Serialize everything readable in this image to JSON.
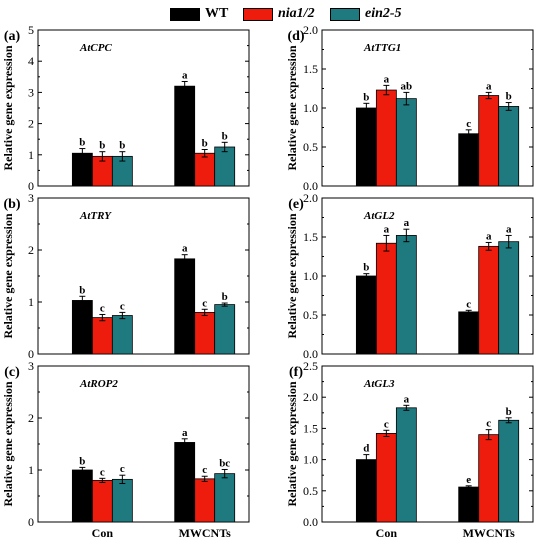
{
  "legend": {
    "wt_label": "WT",
    "nia_label": "nia1/2",
    "ein_label": "ein2-5"
  },
  "colors": {
    "WT": "#000000",
    "nia1/2": "#ee1c0c",
    "ein2-5": "#1f7a80"
  },
  "chart_data": [
    {
      "panel": "(a)",
      "gene": "AtCPC",
      "type": "bar",
      "categories": [
        "Con",
        "MWCNTs"
      ],
      "ylabel": "Relative gene expression",
      "ylim": [
        0,
        5
      ],
      "yticks": [
        0,
        1,
        2,
        3,
        4,
        5
      ],
      "series": [
        {
          "name": "WT",
          "values": [
            1.05,
            3.2
          ],
          "errors": [
            0.15,
            0.15
          ],
          "letters": [
            "b",
            "a"
          ]
        },
        {
          "name": "nia1/2",
          "values": [
            0.95,
            1.05
          ],
          "errors": [
            0.15,
            0.12
          ],
          "letters": [
            "b",
            "b"
          ]
        },
        {
          "name": "ein2-5",
          "values": [
            0.95,
            1.25
          ],
          "errors": [
            0.15,
            0.15
          ],
          "letters": [
            "b",
            "b"
          ]
        }
      ]
    },
    {
      "panel": "(b)",
      "gene": "AtTRY",
      "type": "bar",
      "categories": [
        "Con",
        "MWCNTs"
      ],
      "ylabel": "Relative gene expression",
      "ylim": [
        0,
        3
      ],
      "yticks": [
        0,
        1,
        2,
        3
      ],
      "series": [
        {
          "name": "WT",
          "values": [
            1.03,
            1.83
          ],
          "errors": [
            0.08,
            0.08
          ],
          "letters": [
            "b",
            "a"
          ]
        },
        {
          "name": "nia1/2",
          "values": [
            0.7,
            0.8
          ],
          "errors": [
            0.06,
            0.06
          ],
          "letters": [
            "c",
            "c"
          ]
        },
        {
          "name": "ein2-5",
          "values": [
            0.74,
            0.95
          ],
          "errors": [
            0.06,
            0.03
          ],
          "letters": [
            "c",
            "b"
          ]
        }
      ]
    },
    {
      "panel": "(c)",
      "gene": "AtROP2",
      "type": "bar",
      "categories": [
        "Con",
        "MWCNTs"
      ],
      "xlabels": [
        "Con",
        "MWCNTs"
      ],
      "ylabel": "Relative gene expression",
      "ylim": [
        0,
        3
      ],
      "yticks": [
        0,
        1,
        2,
        3
      ],
      "series": [
        {
          "name": "WT",
          "values": [
            1.0,
            1.53
          ],
          "errors": [
            0.05,
            0.07
          ],
          "letters": [
            "b",
            "a"
          ]
        },
        {
          "name": "nia1/2",
          "values": [
            0.8,
            0.83
          ],
          "errors": [
            0.04,
            0.05
          ],
          "letters": [
            "c",
            "c"
          ]
        },
        {
          "name": "ein2-5",
          "values": [
            0.82,
            0.93
          ],
          "errors": [
            0.08,
            0.08
          ],
          "letters": [
            "c",
            "bc"
          ]
        }
      ]
    },
    {
      "panel": "(d)",
      "gene": "AtTTG1",
      "type": "bar",
      "categories": [
        "Con",
        "MWCNTs"
      ],
      "ylabel": "Relative gene expression",
      "ylim": [
        0,
        2.0
      ],
      "yticks": [
        0,
        0.5,
        1.0,
        1.5,
        2.0
      ],
      "series": [
        {
          "name": "WT",
          "values": [
            1.0,
            0.67
          ],
          "errors": [
            0.06,
            0.05
          ],
          "letters": [
            "b",
            "c"
          ]
        },
        {
          "name": "nia1/2",
          "values": [
            1.23,
            1.16
          ],
          "errors": [
            0.06,
            0.04
          ],
          "letters": [
            "a",
            "a"
          ]
        },
        {
          "name": "ein2-5",
          "values": [
            1.12,
            1.02
          ],
          "errors": [
            0.08,
            0.05
          ],
          "letters": [
            "ab",
            "b"
          ]
        }
      ]
    },
    {
      "panel": "(e)",
      "gene": "AtGL2",
      "type": "bar",
      "categories": [
        "Con",
        "MWCNTs"
      ],
      "ylabel": "Relative gene expression",
      "ylim": [
        0,
        2.0
      ],
      "yticks": [
        0,
        0.5,
        1.0,
        1.5,
        2.0
      ],
      "series": [
        {
          "name": "WT",
          "values": [
            1.0,
            0.54
          ],
          "errors": [
            0.03,
            0.02
          ],
          "letters": [
            "b",
            "c"
          ]
        },
        {
          "name": "nia1/2",
          "values": [
            1.42,
            1.38
          ],
          "errors": [
            0.1,
            0.05
          ],
          "letters": [
            "a",
            "a"
          ]
        },
        {
          "name": "ein2-5",
          "values": [
            1.52,
            1.44
          ],
          "errors": [
            0.08,
            0.08
          ],
          "letters": [
            "a",
            "a"
          ]
        }
      ]
    },
    {
      "panel": "(f)",
      "gene": "AtGL3",
      "type": "bar",
      "categories": [
        "Con",
        "MWCNTs"
      ],
      "xlabels": [
        "Con",
        "MWCNTs"
      ],
      "ylabel": "Relative gene expression",
      "ylim": [
        0,
        2.5
      ],
      "yticks": [
        0.0,
        0.5,
        1.0,
        1.5,
        2.0,
        2.5
      ],
      "series": [
        {
          "name": "WT",
          "values": [
            1.0,
            0.56
          ],
          "errors": [
            0.08,
            0.02
          ],
          "letters": [
            "d",
            "e"
          ]
        },
        {
          "name": "nia1/2",
          "values": [
            1.42,
            1.4
          ],
          "errors": [
            0.05,
            0.08
          ],
          "letters": [
            "c",
            "c"
          ]
        },
        {
          "name": "ein2-5",
          "values": [
            1.83,
            1.63
          ],
          "errors": [
            0.04,
            0.04
          ],
          "letters": [
            "a",
            "b"
          ]
        }
      ]
    }
  ]
}
